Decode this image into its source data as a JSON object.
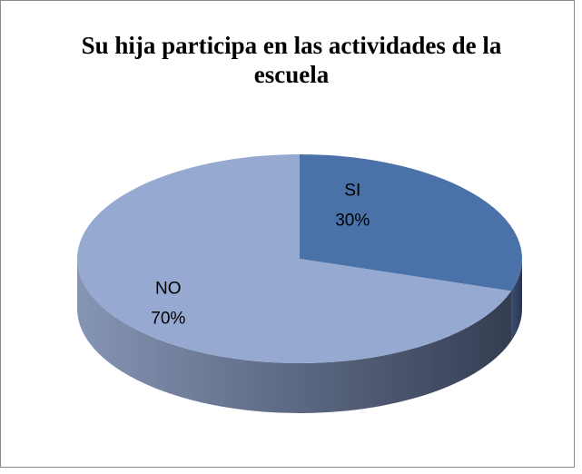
{
  "chart_data": {
    "type": "pie",
    "title": "Su hija participa en las actividades de la escuela",
    "categories": [
      "SI",
      "NO"
    ],
    "values": [
      30,
      70
    ],
    "value_labels": [
      "30%",
      "70%"
    ],
    "colors": [
      "#4a72a8",
      "#95a9d1"
    ]
  }
}
